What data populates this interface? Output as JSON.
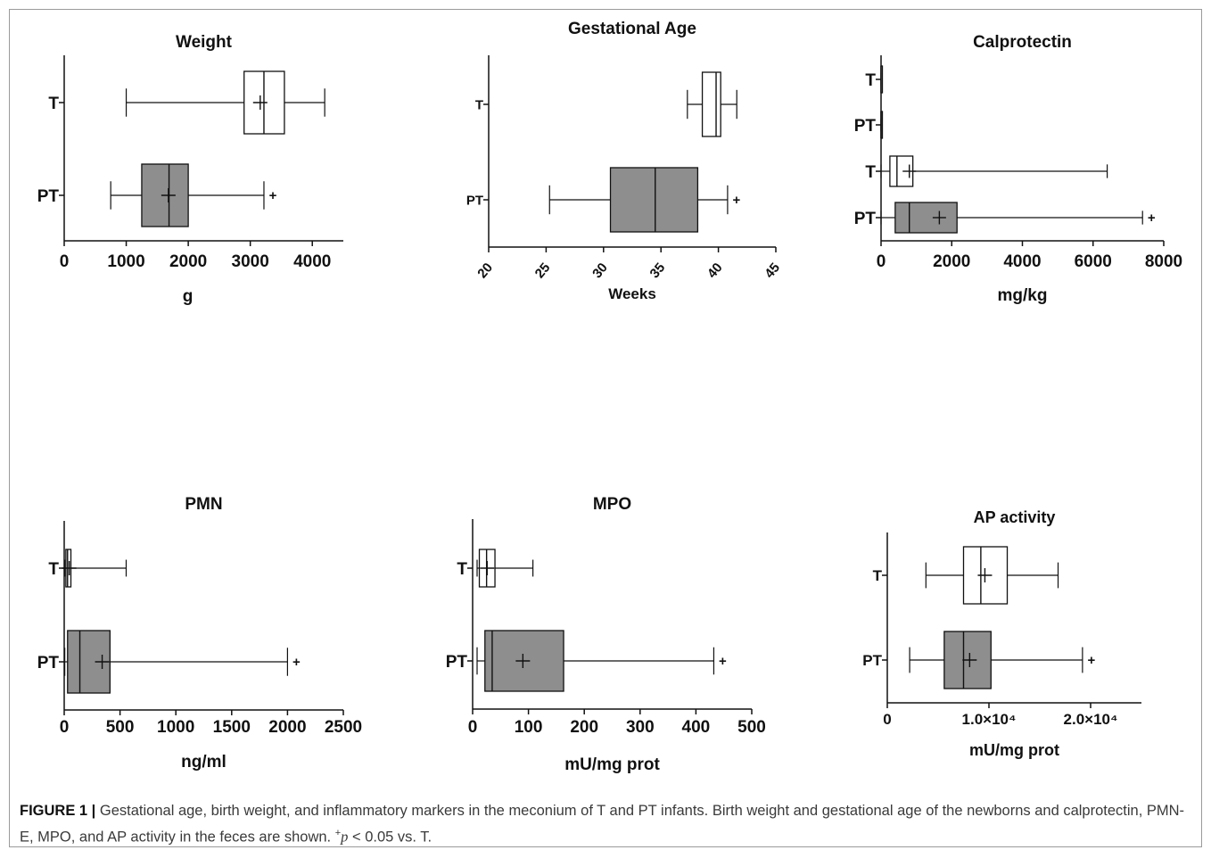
{
  "colors": {
    "box_pt_fill": "#8e8e8e",
    "box_t_fill": "#ffffff",
    "stroke": "#111111"
  },
  "chart_data": [
    {
      "type": "boxplot",
      "title": "Weight",
      "xlabel": "g",
      "xlim": [
        0,
        4500
      ],
      "ticks": [
        0,
        1000,
        2000,
        3000,
        4000
      ],
      "tick_labels": [
        "0",
        "1000",
        "2000",
        "3000",
        "4000"
      ],
      "tick_rotate": false,
      "categories": [
        "T",
        "PT"
      ],
      "series": [
        {
          "category": "T",
          "min": 1000,
          "q1": 2900,
          "median": 3220,
          "q3": 3550,
          "max": 4200,
          "mean": 3160,
          "sig": false
        },
        {
          "category": "PT",
          "min": 750,
          "q1": 1250,
          "median": 1690,
          "q3": 2000,
          "max": 3220,
          "mean": 1680,
          "sig": true
        }
      ]
    },
    {
      "type": "boxplot",
      "title": "Gestational Age",
      "xlabel": "Weeks",
      "xlim": [
        20,
        45
      ],
      "ticks": [
        20,
        25,
        30,
        35,
        40,
        45
      ],
      "tick_labels": [
        "20",
        "25",
        "30",
        "35",
        "40",
        "45"
      ],
      "tick_rotate": true,
      "categories": [
        "T",
        "PT"
      ],
      "series": [
        {
          "category": "T",
          "min": 37.3,
          "q1": 38.6,
          "median": 39.8,
          "q3": 40.2,
          "max": 41.6,
          "mean": null,
          "sig": false
        },
        {
          "category": "PT",
          "min": 25.3,
          "q1": 30.6,
          "median": 34.5,
          "q3": 38.2,
          "max": 40.8,
          "mean": null,
          "sig": true
        }
      ]
    },
    {
      "type": "boxplot",
      "title": "Calprotectin",
      "xlabel": "mg/kg",
      "xlim": [
        0,
        8000
      ],
      "ticks": [
        0,
        2000,
        4000,
        6000,
        8000
      ],
      "tick_labels": [
        "0",
        "2000",
        "4000",
        "6000",
        "8000"
      ],
      "tick_rotate": false,
      "categories": [
        "T",
        "PT",
        "T",
        "PT"
      ],
      "series": [
        {
          "category": "T",
          "min": 0,
          "q1": 0,
          "median": 0,
          "q3": 10,
          "max": 20,
          "mean": null,
          "sig": false
        },
        {
          "category": "PT",
          "min": 0,
          "q1": 0,
          "median": 0,
          "q3": 0,
          "max": 0,
          "mean": null,
          "sig": false
        },
        {
          "category": "T",
          "min": 0,
          "q1": 250,
          "median": 450,
          "q3": 900,
          "max": 6400,
          "mean": 800,
          "sig": false
        },
        {
          "category": "PT",
          "min": 0,
          "q1": 400,
          "median": 800,
          "q3": 2150,
          "max": 7400,
          "mean": 1650,
          "sig": true
        }
      ]
    },
    {
      "type": "boxplot",
      "title": "PMN",
      "xlabel": "ng/ml",
      "xlim": [
        0,
        2500
      ],
      "ticks": [
        0,
        500,
        1000,
        1500,
        2000,
        2500
      ],
      "tick_labels": [
        "0",
        "500",
        "1000",
        "1500",
        "2000",
        "2500"
      ],
      "tick_rotate": false,
      "categories": [
        "T",
        "PT"
      ],
      "series": [
        {
          "category": "T",
          "min": 5,
          "q1": 15,
          "median": 30,
          "q3": 60,
          "max": 555,
          "mean": 45,
          "sig": false
        },
        {
          "category": "PT",
          "min": 5,
          "q1": 30,
          "median": 140,
          "q3": 410,
          "max": 2000,
          "mean": 340,
          "sig": true
        }
      ]
    },
    {
      "type": "boxplot",
      "title": "MPO",
      "xlabel": "mU/mg prot",
      "xlim": [
        0,
        500
      ],
      "ticks": [
        0,
        100,
        200,
        300,
        400,
        500
      ],
      "tick_labels": [
        "0",
        "100",
        "200",
        "300",
        "400",
        "500"
      ],
      "tick_rotate": false,
      "categories": [
        "T",
        "PT"
      ],
      "series": [
        {
          "category": "T",
          "min": 8,
          "q1": 12,
          "median": 25,
          "q3": 40,
          "max": 108,
          "mean": 26,
          "sig": false
        },
        {
          "category": "PT",
          "min": 8,
          "q1": 22,
          "median": 35,
          "q3": 163,
          "max": 432,
          "mean": 90,
          "sig": true
        }
      ]
    },
    {
      "type": "boxplot",
      "title": "AP activity",
      "xlabel": "mU/mg prot",
      "xlim": [
        0,
        25000
      ],
      "ticks": [
        0,
        10000,
        20000
      ],
      "tick_labels": [
        "0",
        "1.0×10⁴",
        "2.0×10⁴"
      ],
      "tick_rotate": false,
      "categories": [
        "T",
        "PT"
      ],
      "series": [
        {
          "category": "T",
          "min": 3800,
          "q1": 7500,
          "median": 9200,
          "q3": 11800,
          "max": 16800,
          "mean": 9600,
          "sig": false
        },
        {
          "category": "PT",
          "min": 2200,
          "q1": 5600,
          "median": 7500,
          "q3": 10200,
          "max": 19200,
          "mean": 8100,
          "sig": true
        }
      ]
    }
  ],
  "caption": {
    "label": "FIGURE 1 |",
    "text": "Gestational age, birth weight, and inflammatory markers in the meconium of T and PT infants. Birth weight and gestational age of the newborns and calprotectin, PMN-E, MPO, and AP activity in the feces are shown.",
    "sig_marker": "+",
    "p_symbol": "p",
    "p_text": " < 0.05 vs. T."
  }
}
